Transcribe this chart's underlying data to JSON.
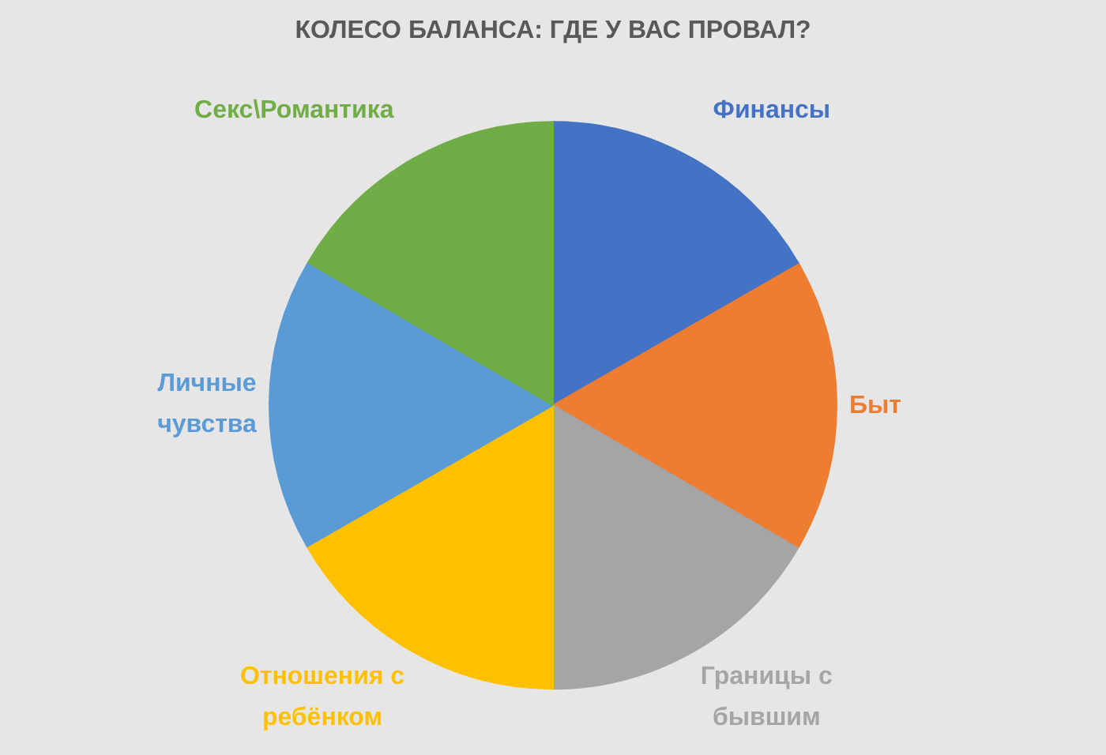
{
  "chart_data": {
    "type": "pie",
    "title": "КОЛЕСО БАЛАНСА: ГДЕ У ВАС ПРОВАЛ?",
    "categories": [
      "Финансы",
      "Быт",
      "Границы с бывшим",
      "Отношения с ребёнком",
      "Личные чувства",
      "Секс\\Романтика"
    ],
    "values": [
      16.7,
      16.7,
      16.6,
      16.7,
      16.7,
      16.6
    ],
    "colors": [
      "#4472c4",
      "#ed7d31",
      "#a5a5a5",
      "#ffc000",
      "#5b9bd5",
      "#70ad47"
    ]
  }
}
